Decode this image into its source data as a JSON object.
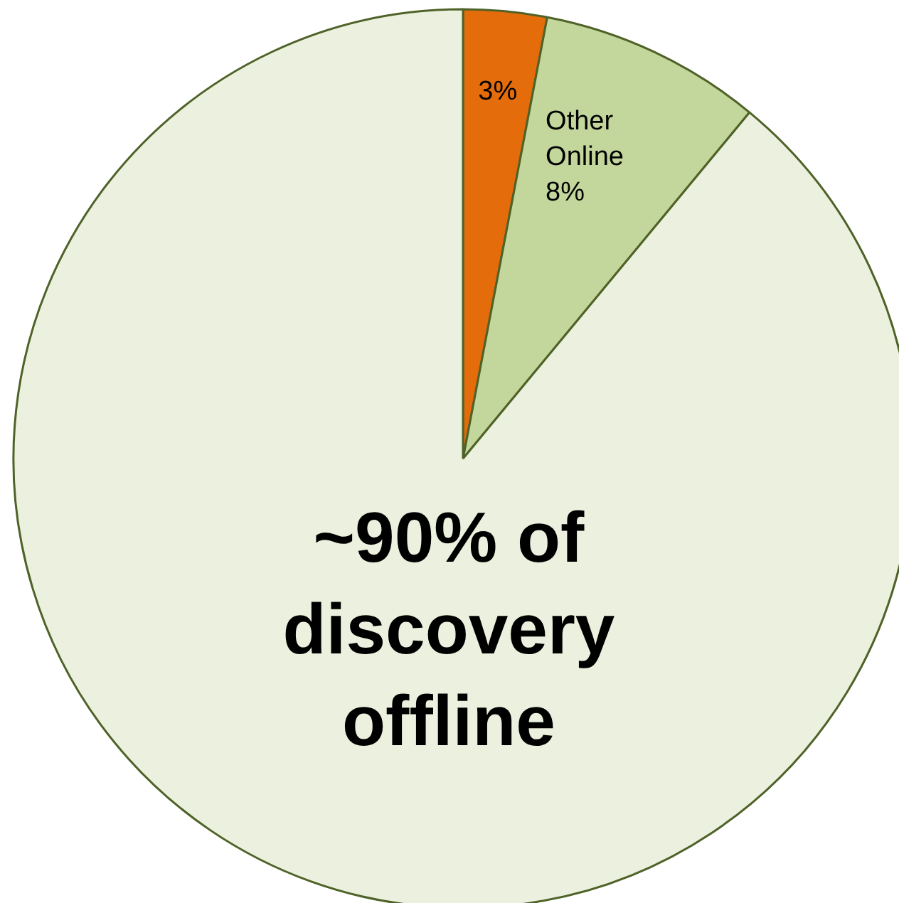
{
  "chart_data": {
    "type": "pie",
    "categories": [
      null,
      "Other\nOnline",
      "~90% of\ndiscovery\noffline"
    ],
    "values": [
      3,
      8,
      89
    ],
    "colors": [
      "#e46c0a",
      "#c3d69b",
      "#ebf1de"
    ],
    "value_labels": [
      "3%",
      "8%",
      null
    ]
  }
}
